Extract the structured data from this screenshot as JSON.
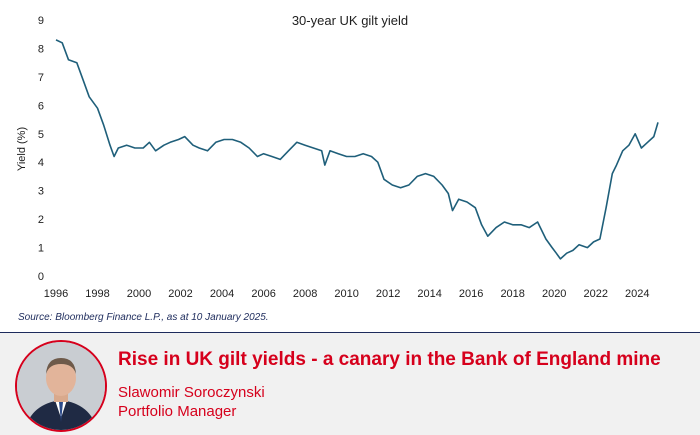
{
  "chart_data": {
    "type": "line",
    "title": "30-year UK gilt yield",
    "xlabel": "",
    "ylabel": "Yield (%)",
    "xlim": [
      1996,
      2025
    ],
    "ylim": [
      0,
      9
    ],
    "x_ticks": [
      "1996",
      "1998",
      "2000",
      "2002",
      "2004",
      "2006",
      "2008",
      "2010",
      "2012",
      "2014",
      "2016",
      "2018",
      "2020",
      "2022",
      "2024"
    ],
    "y_ticks": [
      "0",
      "1",
      "2",
      "3",
      "4",
      "5",
      "6",
      "7",
      "8",
      "9"
    ],
    "grid": false,
    "legend": "none",
    "line_color": "#1f5f7a",
    "series": [
      {
        "name": "30-year UK gilt yield",
        "x": [
          1996.0,
          1996.3,
          1996.6,
          1997.0,
          1997.3,
          1997.6,
          1998.0,
          1998.3,
          1998.6,
          1998.8,
          1999.0,
          1999.4,
          1999.8,
          2000.2,
          2000.5,
          2000.8,
          2001.2,
          2001.5,
          2001.9,
          2002.2,
          2002.6,
          2002.9,
          2003.3,
          2003.7,
          2004.1,
          2004.5,
          2004.9,
          2005.3,
          2005.7,
          2006.0,
          2006.4,
          2006.8,
          2007.2,
          2007.6,
          2008.0,
          2008.4,
          2008.8,
          2008.95,
          2009.2,
          2009.6,
          2010.0,
          2010.4,
          2010.8,
          2011.2,
          2011.5,
          2011.8,
          2012.2,
          2012.6,
          2013.0,
          2013.4,
          2013.8,
          2014.2,
          2014.6,
          2014.9,
          2015.1,
          2015.4,
          2015.8,
          2016.2,
          2016.5,
          2016.8,
          2017.2,
          2017.6,
          2018.0,
          2018.4,
          2018.8,
          2019.2,
          2019.6,
          2019.9,
          2020.1,
          2020.3,
          2020.6,
          2020.9,
          2021.2,
          2021.6,
          2021.9,
          2022.2,
          2022.5,
          2022.8,
          2023.0,
          2023.3,
          2023.6,
          2023.9,
          2024.2,
          2024.5,
          2024.8,
          2025.0
        ],
        "y": [
          8.3,
          8.2,
          7.6,
          7.5,
          6.9,
          6.3,
          5.9,
          5.3,
          4.6,
          4.2,
          4.5,
          4.6,
          4.5,
          4.5,
          4.7,
          4.4,
          4.6,
          4.7,
          4.8,
          4.9,
          4.6,
          4.5,
          4.4,
          4.7,
          4.8,
          4.8,
          4.7,
          4.5,
          4.2,
          4.3,
          4.2,
          4.1,
          4.4,
          4.7,
          4.6,
          4.5,
          4.4,
          3.9,
          4.4,
          4.3,
          4.2,
          4.2,
          4.3,
          4.2,
          4.0,
          3.4,
          3.2,
          3.1,
          3.2,
          3.5,
          3.6,
          3.5,
          3.2,
          2.9,
          2.3,
          2.7,
          2.6,
          2.4,
          1.8,
          1.4,
          1.7,
          1.9,
          1.8,
          1.8,
          1.7,
          1.9,
          1.3,
          1.0,
          0.8,
          0.6,
          0.8,
          0.9,
          1.1,
          1.0,
          1.2,
          1.3,
          2.4,
          3.6,
          3.9,
          4.4,
          4.6,
          5.0,
          4.5,
          4.7,
          4.9,
          5.4
        ]
      }
    ]
  },
  "source": "Source: Bloomberg Finance L.P., as at 10 January 2025.",
  "footer": {
    "headline": "Rise in UK gilt yields - a canary in the Bank of England mine",
    "author_name": "Slawomir Soroczynski",
    "author_role": "Portfolio Manager",
    "accent_color": "#d6001c",
    "background_color": "#f1f1f1"
  }
}
